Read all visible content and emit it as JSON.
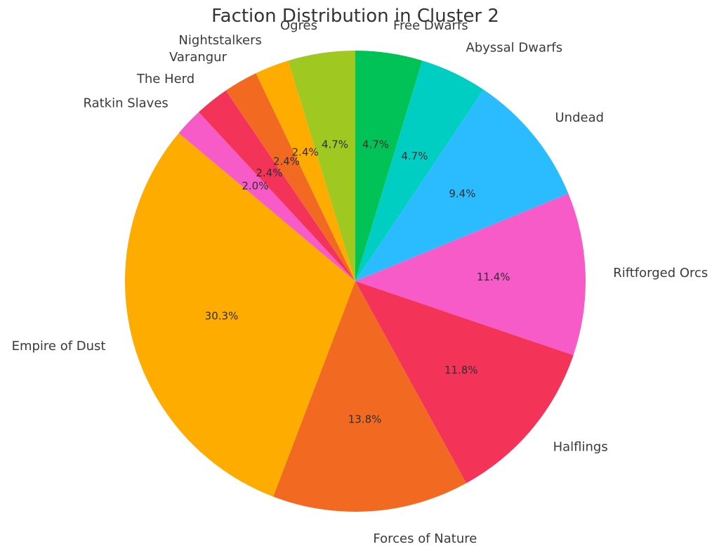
{
  "chart_data": {
    "type": "pie",
    "title": "Faction Distribution in Cluster 2",
    "start_angle_deg": 90,
    "direction": "clockwise",
    "slices": [
      {
        "label": "Free Dwarfs",
        "value": 4.7,
        "pct_text": "4.7%",
        "color": "#00c257"
      },
      {
        "label": "Abyssal Dwarfs",
        "value": 4.7,
        "pct_text": "4.7%",
        "color": "#00cec3"
      },
      {
        "label": "Undead",
        "value": 9.4,
        "pct_text": "9.4%",
        "color": "#2bbcff"
      },
      {
        "label": "Riftforged Orcs",
        "value": 11.4,
        "pct_text": "11.4%",
        "color": "#f75bc7"
      },
      {
        "label": "Halflings",
        "value": 11.8,
        "pct_text": "11.8%",
        "color": "#f43358"
      },
      {
        "label": "Forces of Nature",
        "value": 13.8,
        "pct_text": "13.8%",
        "color": "#f26a21"
      },
      {
        "label": "Empire of Dust",
        "value": 30.3,
        "pct_text": "30.3%",
        "color": "#ffac00"
      },
      {
        "label": "Ratkin Slaves",
        "value": 2.0,
        "pct_text": "2.0%",
        "color": "#f75bc7"
      },
      {
        "label": "The Herd",
        "value": 2.4,
        "pct_text": "2.4%",
        "color": "#f43358"
      },
      {
        "label": "Varangur",
        "value": 2.4,
        "pct_text": "2.4%",
        "color": "#f26a21"
      },
      {
        "label": "Nightstalkers",
        "value": 2.4,
        "pct_text": "2.4%",
        "color": "#ffac00"
      },
      {
        "label": "Ogres",
        "value": 4.7,
        "pct_text": "4.7%",
        "color": "#9fc820"
      }
    ]
  }
}
